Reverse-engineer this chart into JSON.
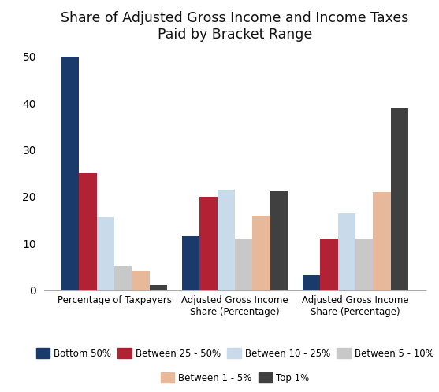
{
  "title": "Share of Adjusted Gross Income and Income Taxes\nPaid by Bracket Range",
  "categories": [
    "Percentage of Taxpayers",
    "Adjusted Gross Income\nShare (Percentage)",
    "Adjusted Gross Income\nShare (Percentage)"
  ],
  "series": {
    "Bottom 50%": [
      50,
      11.5,
      3.3
    ],
    "Between 25 - 50%": [
      25,
      20,
      11
    ],
    "Between 10 - 25%": [
      15.5,
      21.5,
      16.5
    ],
    "Between 5 - 10%": [
      5.2,
      11,
      11
    ],
    "Between 1 - 5%": [
      4.2,
      16,
      21
    ],
    "Top 1%": [
      1.1,
      21.2,
      39
    ]
  },
  "colors": {
    "Bottom 50%": "#1a3a6b",
    "Between 25 - 50%": "#b22234",
    "Between 10 - 25%": "#c9daea",
    "Between 5 - 10%": "#c8c8c8",
    "Between 1 - 5%": "#e8b89a",
    "Top 1%": "#404040"
  },
  "ylim": [
    0,
    52
  ],
  "yticks": [
    0,
    10,
    20,
    30,
    40,
    50
  ],
  "background_color": "#ffffff",
  "legend_row1": [
    "Bottom 50%",
    "Between 25 - 50%",
    "Between 10 - 25%",
    "Between 5 - 10%"
  ],
  "legend_row2": [
    "Between 1 - 5%",
    "Top 1%"
  ],
  "legend_order": [
    "Bottom 50%",
    "Between 25 - 50%",
    "Between 10 - 25%",
    "Between 5 - 10%",
    "Between 1 - 5%",
    "Top 1%"
  ]
}
